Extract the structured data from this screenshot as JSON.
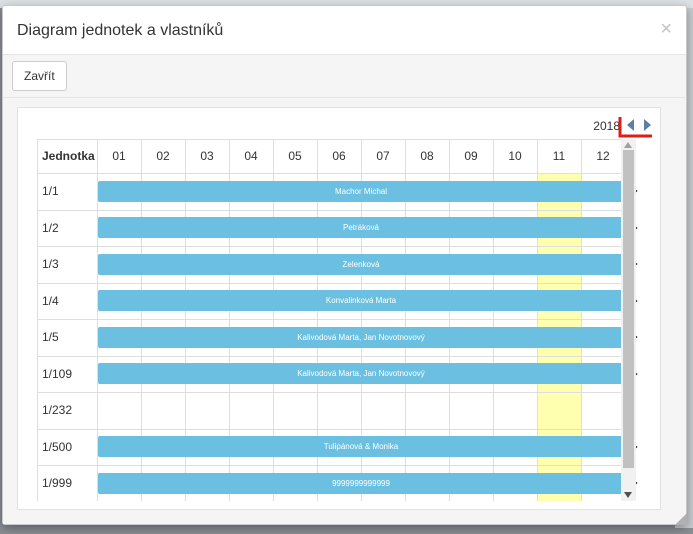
{
  "modal": {
    "title": "Diagram jednotek a vlastníků",
    "close_glyph": "×",
    "close_button_label": "Zavřít"
  },
  "diagram": {
    "year": "2018",
    "column_header": "Jednotka",
    "months": [
      "01",
      "02",
      "03",
      "04",
      "05",
      "06",
      "07",
      "08",
      "09",
      "10",
      "11",
      "12"
    ],
    "highlight_month": "11",
    "rows": [
      {
        "unit": "1/1",
        "owner": "Machor Michal",
        "has_bar": true
      },
      {
        "unit": "1/2",
        "owner": "Petráková",
        "has_bar": true
      },
      {
        "unit": "1/3",
        "owner": "Zelenková",
        "has_bar": true
      },
      {
        "unit": "1/4",
        "owner": "Konvalinková Marta",
        "has_bar": true
      },
      {
        "unit": "1/5",
        "owner": "Kalivodová Marta, Jan Novotnovový",
        "has_bar": true
      },
      {
        "unit": "1/109",
        "owner": "Kalivodová Marta, Jan Novotnovový",
        "has_bar": true
      },
      {
        "unit": "1/232",
        "owner": "",
        "has_bar": false
      },
      {
        "unit": "1/500",
        "owner": "Tulipánová & Monika",
        "has_bar": true
      },
      {
        "unit": "1/999",
        "owner": "9999999999999",
        "has_bar": true
      }
    ]
  },
  "colors": {
    "bar": "#6bbfe0",
    "highlight": "#ffffb0",
    "annotation": "#e01b1b",
    "nav_arrow": "#5d7fa3"
  },
  "icons": {
    "prev": "triangle-left-icon",
    "next": "triangle-right-icon",
    "row_arrow": "chevron-right-icon"
  }
}
